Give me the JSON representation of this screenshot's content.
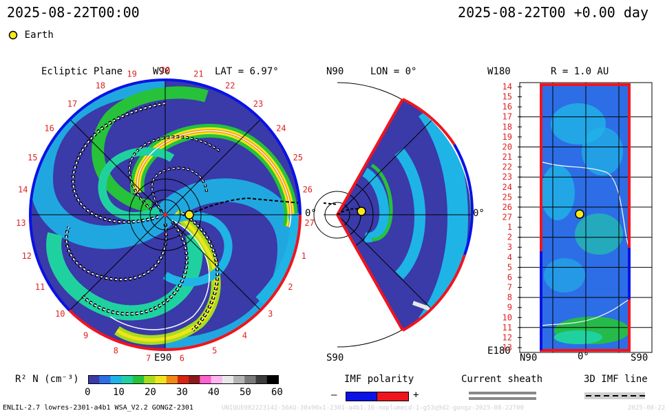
{
  "header": {
    "left_timestamp": "2025-08-22T00:00",
    "right_timestamp": "2025-08-22T00 +0.00 day"
  },
  "legend": {
    "earth_label": "Earth"
  },
  "panels": {
    "ecliptic": {
      "title": "Ecliptic Plane",
      "w_label": "W90",
      "lat_label": "LAT = 6.97°",
      "bottom_label": "E90",
      "zero_label": "0°",
      "carrington_labels": [
        "20",
        "21",
        "22",
        "23",
        "24",
        "25",
        "26",
        "27",
        "1",
        "2",
        "3",
        "4",
        "5",
        "6",
        "7",
        "8",
        "9",
        "10",
        "11",
        "12",
        "13",
        "14",
        "15",
        "16",
        "17",
        "18",
        "19"
      ]
    },
    "meridional": {
      "top_label": "N90",
      "lon_label": "LON = 0°",
      "bottom_label": "S90",
      "zero_label": "0°"
    },
    "r_surface": {
      "top_left": "W180",
      "title": "R = 1.0 AU",
      "bottom_left": "E180",
      "x_labels": [
        "N90",
        "0°",
        "S90"
      ],
      "y_labels": [
        "14",
        "15",
        "16",
        "17",
        "18",
        "19",
        "20",
        "21",
        "22",
        "23",
        "24",
        "25",
        "26",
        "27",
        "1",
        "2",
        "3",
        "4",
        "5",
        "6",
        "7",
        "8",
        "9",
        "10",
        "11",
        "12",
        "13"
      ]
    }
  },
  "colorbar": {
    "label": "R² N (cm⁻³)",
    "ticks": [
      "0",
      "10",
      "20",
      "30",
      "40",
      "50",
      "60"
    ],
    "colors": [
      "#3a3aa8",
      "#2d6ee6",
      "#1fb4e6",
      "#20d1a0",
      "#26c23a",
      "#a7dc1e",
      "#f0e51c",
      "#f08a14",
      "#d62510",
      "#8a1a1a",
      "#ff5fd0",
      "#ffb4f0",
      "#e8e8e8",
      "#b4b4b4",
      "#7a7a7a",
      "#3c3c3c",
      "#000000"
    ]
  },
  "imf_legend": {
    "title": "IMF polarity",
    "minus": "–",
    "plus": "+",
    "neg_color": "#0a12e6",
    "pos_color": "#f0141e"
  },
  "sheath_legend": {
    "title": "Current sheath"
  },
  "imf_line_legend": {
    "title": "3D IMF line"
  },
  "footer": {
    "left": "ENLIL-2.7 lowres-2301-a4b1 WSA_V2.2 GONGZ-2301",
    "mid": "UNIQUE082223142-56AU-30x90x1-2301-a4b1.16-noplumecd-1-g53q9d2-gongz-2025-08-22T00",
    "right": "2025-08-22"
  }
}
